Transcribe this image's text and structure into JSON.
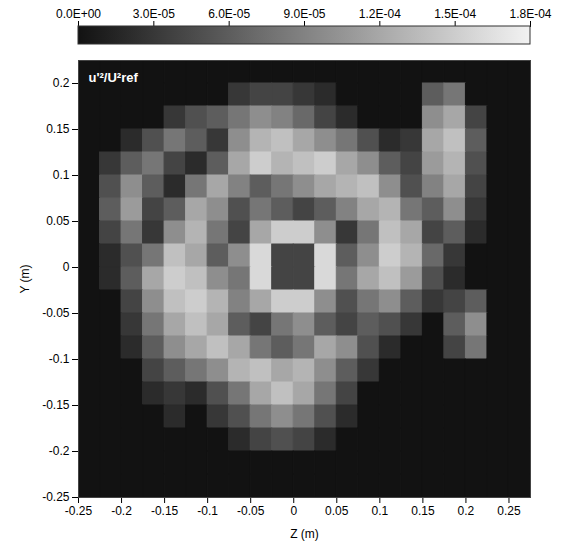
{
  "chart_data": {
    "type": "heatmap",
    "xlabel": "Z (m)",
    "ylabel": "Y (m)",
    "annotation": "u'²/U²ref",
    "xlim": [
      -0.25,
      0.275
    ],
    "ylim": [
      -0.25,
      0.225
    ],
    "xticks": [
      -0.25,
      -0.2,
      -0.15,
      -0.1,
      -0.05,
      0,
      0.05,
      0.1,
      0.15,
      0.2,
      0.25
    ],
    "yticks": [
      -0.25,
      -0.2,
      -0.15,
      -0.1,
      -0.05,
      0,
      0.05,
      0.1,
      0.15,
      0.2
    ],
    "x": [
      -0.2375,
      -0.2125,
      -0.1875,
      -0.1625,
      -0.1375,
      -0.1125,
      -0.0875,
      -0.0625,
      -0.0375,
      -0.0125,
      0.0125,
      0.0375,
      0.0625,
      0.0875,
      0.1125,
      0.1375,
      0.1625,
      0.1875,
      0.2125,
      0.2375,
      0.2625
    ],
    "y": [
      0.2125,
      0.1875,
      0.1625,
      0.1375,
      0.1125,
      0.0875,
      0.0625,
      0.0375,
      0.0125,
      -0.0125,
      -0.0375,
      -0.0625,
      -0.0875,
      -0.1125,
      -0.1375,
      -0.1625,
      -0.1875,
      -0.2125,
      -0.2375
    ],
    "cells": [
      [
        0,
        0,
        0,
        0,
        0,
        0,
        0,
        0,
        0,
        0,
        0,
        0,
        0,
        0,
        0,
        0,
        0,
        0,
        0,
        0,
        0
      ],
      [
        0,
        0,
        0,
        0,
        0,
        0,
        0,
        3e-05,
        4e-05,
        4e-05,
        3e-05,
        2e-05,
        0,
        0,
        0,
        0,
        6e-05,
        8e-05,
        0,
        0,
        0
      ],
      [
        0,
        0,
        0,
        0,
        3e-05,
        5e-05,
        6e-05,
        8e-05,
        0.0001,
        9e-05,
        7e-05,
        4e-05,
        2e-05,
        0,
        0,
        0,
        0.0001,
        0.00012,
        4e-05,
        0,
        0
      ],
      [
        0,
        0,
        2e-05,
        5e-05,
        8e-05,
        6e-05,
        3e-05,
        0.0001,
        0.00013,
        0.00014,
        0.00012,
        0.0001,
        8e-05,
        5e-05,
        2e-05,
        3e-05,
        0.00012,
        0.00014,
        6e-05,
        0,
        0
      ],
      [
        0,
        3e-05,
        6e-05,
        8e-05,
        4e-05,
        2e-05,
        6e-05,
        0.00012,
        0.00015,
        0.00013,
        0.00014,
        0.00015,
        0.00012,
        0.0001,
        6e-05,
        4e-05,
        0.00011,
        0.00013,
        5e-05,
        0,
        0
      ],
      [
        0,
        5e-05,
        0.0001,
        6e-05,
        2e-05,
        8e-05,
        0.00012,
        9e-05,
        6e-05,
        8e-05,
        0.0001,
        0.00012,
        0.00013,
        0.00014,
        0.0001,
        5e-05,
        9e-05,
        0.00012,
        4e-05,
        0,
        0
      ],
      [
        0,
        6e-05,
        0.00011,
        4e-05,
        6e-05,
        0.00012,
        0.0001,
        5e-05,
        8e-05,
        6e-05,
        4e-05,
        6e-05,
        9e-05,
        0.00012,
        0.00013,
        8e-05,
        6e-05,
        0.0001,
        3e-05,
        0,
        0
      ],
      [
        0,
        4e-05,
        8e-05,
        3e-05,
        0.0001,
        0.00013,
        8e-05,
        4e-05,
        0.00012,
        0.00015,
        0.00015,
        0.0001,
        3e-05,
        8e-05,
        0.00014,
        0.00012,
        4e-05,
        6e-05,
        2e-05,
        0,
        0
      ],
      [
        0,
        2e-05,
        5e-05,
        8e-05,
        0.00014,
        0.00012,
        6e-05,
        0.0001,
        0.00016,
        4e-05,
        4e-05,
        0.00016,
        6e-05,
        0.0001,
        0.00015,
        0.00013,
        7e-05,
        3e-05,
        0,
        0,
        0
      ],
      [
        0,
        2e-05,
        6e-05,
        0.00012,
        0.00015,
        0.00014,
        0.0001,
        8e-05,
        0.00016,
        4e-05,
        4e-05,
        0.00016,
        8e-05,
        0.00012,
        0.00014,
        0.00011,
        5e-05,
        2e-05,
        0,
        0,
        0
      ],
      [
        0,
        0,
        4e-05,
        0.0001,
        0.00014,
        0.00015,
        0.00013,
        9e-05,
        0.00012,
        0.00015,
        0.00015,
        0.0001,
        5e-05,
        8e-05,
        0.0001,
        6e-05,
        3e-05,
        4e-05,
        6e-05,
        0,
        0
      ],
      [
        0,
        0,
        3e-05,
        8e-05,
        0.00012,
        0.00014,
        0.00012,
        6e-05,
        4e-05,
        8e-05,
        0.0001,
        6e-05,
        4e-05,
        6e-05,
        5e-05,
        3e-05,
        0,
        6e-05,
        0.0001,
        0,
        0
      ],
      [
        0,
        0,
        2e-05,
        6e-05,
        0.0001,
        0.00012,
        0.00014,
        0.00012,
        8e-05,
        6e-05,
        8e-05,
        0.00012,
        0.0001,
        5e-05,
        2e-05,
        0,
        0,
        4e-05,
        8e-05,
        0,
        0
      ],
      [
        0,
        0,
        0,
        4e-05,
        6e-05,
        8e-05,
        0.0001,
        0.00013,
        0.00014,
        0.00012,
        0.00013,
        0.0001,
        6e-05,
        3e-05,
        0,
        0,
        0,
        0,
        0,
        0,
        0
      ],
      [
        0,
        0,
        0,
        2e-05,
        3e-05,
        2e-05,
        5e-05,
        8e-05,
        0.00012,
        0.00014,
        0.00012,
        8e-05,
        4e-05,
        0,
        0,
        0,
        0,
        0,
        0,
        0,
        0
      ],
      [
        0,
        0,
        0,
        0,
        2e-05,
        0,
        3e-05,
        5e-05,
        8e-05,
        0.0001,
        8e-05,
        5e-05,
        2e-05,
        0,
        0,
        0,
        0,
        0,
        0,
        0,
        0
      ],
      [
        0,
        0,
        0,
        0,
        0,
        0,
        0,
        2e-05,
        4e-05,
        5e-05,
        4e-05,
        2e-05,
        0,
        0,
        0,
        0,
        0,
        0,
        0,
        0,
        0
      ],
      [
        0,
        0,
        0,
        0,
        0,
        0,
        0,
        0,
        0,
        0,
        0,
        0,
        0,
        0,
        0,
        0,
        0,
        0,
        0,
        0,
        0
      ],
      [
        0,
        0,
        0,
        0,
        0,
        0,
        0,
        0,
        0,
        0,
        0,
        0,
        0,
        0,
        0,
        0,
        0,
        0,
        0,
        0,
        0
      ]
    ],
    "colorbar": {
      "range": [
        0,
        0.00018
      ],
      "ticks": [
        {
          "value": 0,
          "label": "0.0E+00"
        },
        {
          "value": 3e-05,
          "label": "3.0E-05"
        },
        {
          "value": 6e-05,
          "label": "6.0E-05"
        },
        {
          "value": 9e-05,
          "label": "9.0E-05"
        },
        {
          "value": 0.00012,
          "label": "1.2E-04"
        },
        {
          "value": 0.00015,
          "label": "1.5E-04"
        },
        {
          "value": 0.00018,
          "label": "1.8E-04"
        }
      ]
    }
  }
}
